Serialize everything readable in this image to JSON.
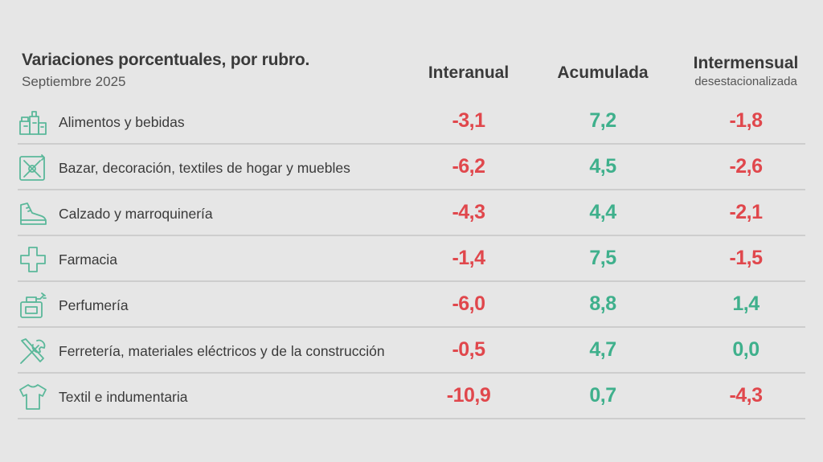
{
  "title": "Variaciones porcentuales, por rubro.",
  "subtitle": "Septiembre 2025",
  "columns": {
    "interanual": "Interanual",
    "acumulada": "Acumulada",
    "intermensual": "Intermensual",
    "intermensual_sub": "desestacionalizada"
  },
  "colors": {
    "negative": "#e0474c",
    "positive": "#3fb08c",
    "icon": "#5bb89a"
  },
  "rows": [
    {
      "icon": "groceries-icon",
      "label": "Alimentos y bebidas",
      "interanual": "-3,1",
      "acumulada": "7,2",
      "intermensual": "-1,8"
    },
    {
      "icon": "bazar-icon",
      "label": "Bazar, decoración, textiles de hogar y muebles",
      "interanual": "-6,2",
      "acumulada": "4,5",
      "intermensual": "-2,6"
    },
    {
      "icon": "shoe-icon",
      "label": "Calzado y marroquinería",
      "interanual": "-4,3",
      "acumulada": "4,4",
      "intermensual": "-2,1"
    },
    {
      "icon": "pharmacy-cross-icon",
      "label": "Farmacia",
      "interanual": "-1,4",
      "acumulada": "7,5",
      "intermensual": "-1,5"
    },
    {
      "icon": "perfume-icon",
      "label": "Perfumería",
      "interanual": "-6,0",
      "acumulada": "8,8",
      "intermensual": "1,4"
    },
    {
      "icon": "tools-icon",
      "label": "Ferretería, materiales eléctricos y de la construcción",
      "interanual": "-0,5",
      "acumulada": "4,7",
      "intermensual": "0,0"
    },
    {
      "icon": "tshirt-icon",
      "label": "Textil e indumentaria",
      "interanual": "-10,9",
      "acumulada": "0,7",
      "intermensual": "-4,3"
    }
  ]
}
